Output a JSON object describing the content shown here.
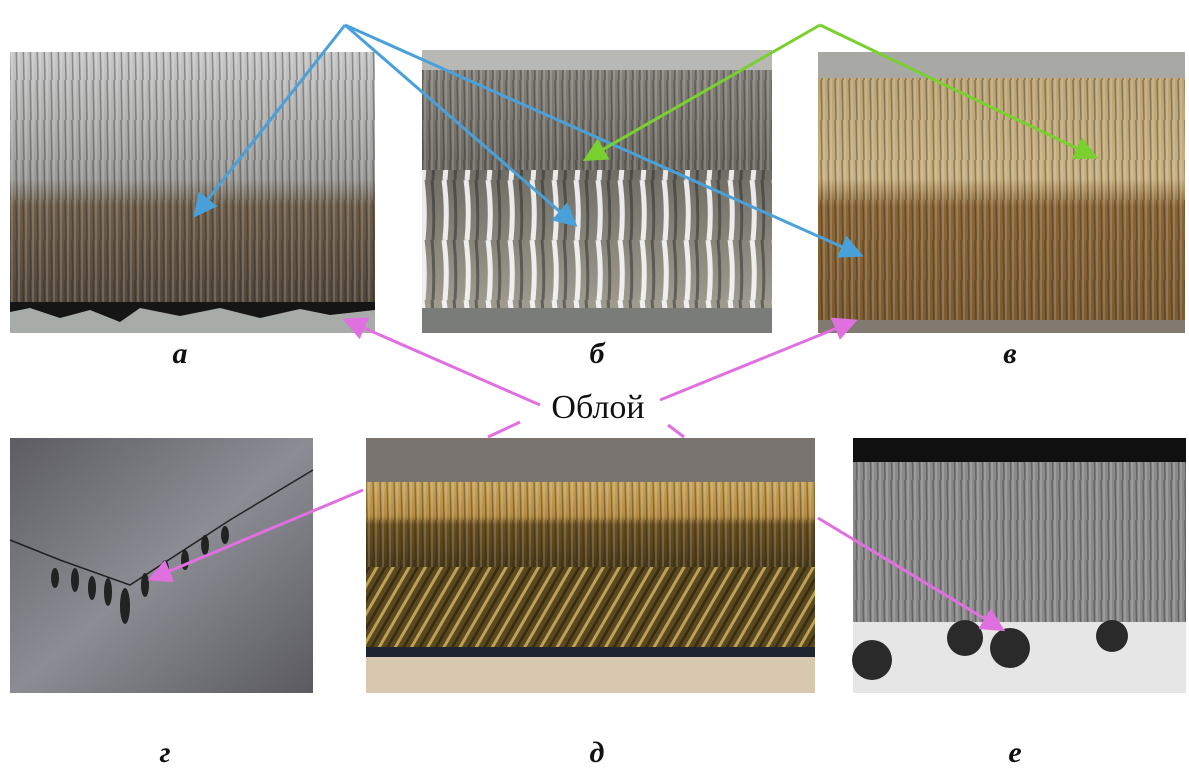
{
  "panels": [
    {
      "label": "а"
    },
    {
      "label": "б"
    },
    {
      "label": "в"
    },
    {
      "label": "г"
    },
    {
      "label": "д"
    },
    {
      "label": "е"
    }
  ],
  "annotation": "Облой"
}
